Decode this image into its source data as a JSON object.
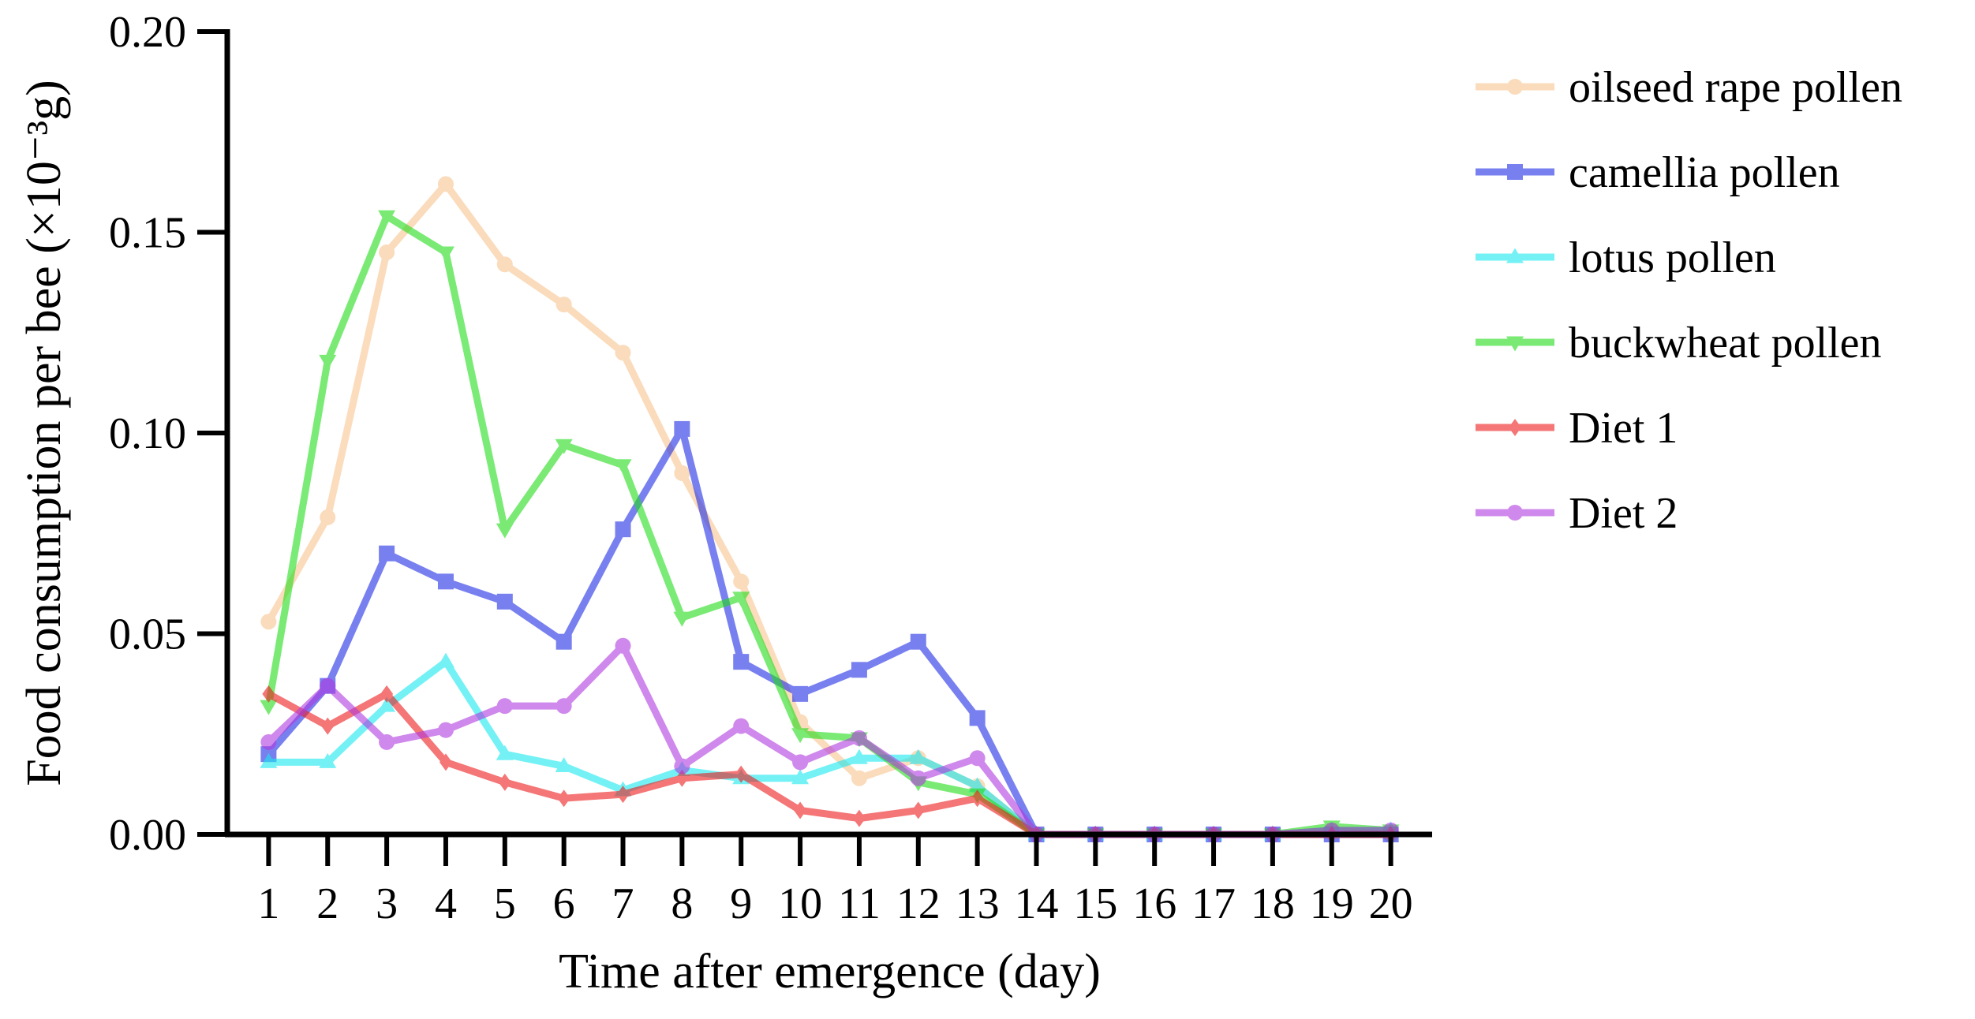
{
  "chart_data": {
    "type": "line",
    "title": "",
    "xlabel": "Time after emergence (day)",
    "ylabel": "Food consumption per bee (×10⁻³g)",
    "x": [
      1,
      2,
      3,
      4,
      5,
      6,
      7,
      8,
      9,
      10,
      11,
      12,
      13,
      14,
      15,
      16,
      17,
      18,
      19,
      20
    ],
    "x_tick_labels": [
      "1",
      "2",
      "3",
      "4",
      "5",
      "6",
      "7",
      "8",
      "9",
      "10",
      "11",
      "12",
      "13",
      "14",
      "15",
      "16",
      "17",
      "18",
      "19",
      "20"
    ],
    "y_ticks": [
      0.0,
      0.05,
      0.1,
      0.15,
      0.2
    ],
    "y_tick_labels": [
      "0.00",
      "0.05",
      "0.10",
      "0.15",
      "0.20"
    ],
    "ylim": [
      0,
      0.2
    ],
    "xlim": [
      0.3,
      20.7
    ],
    "grid": false,
    "legend_position": "right",
    "series": [
      {
        "name": "oilseed rape pollen",
        "color": "#f8c48f",
        "marker": "circle",
        "values": [
          0.053,
          0.079,
          0.145,
          0.162,
          0.142,
          0.132,
          0.12,
          0.09,
          0.063,
          0.028,
          0.014,
          0.019,
          0.012,
          0.0,
          0.0,
          0.0,
          0.0,
          0.0,
          0.001,
          0.0
        ]
      },
      {
        "name": "camellia pollen",
        "color": "#1f2de6",
        "marker": "square",
        "values": [
          0.02,
          0.037,
          0.07,
          0.063,
          0.058,
          0.048,
          0.076,
          0.101,
          0.043,
          0.035,
          0.041,
          0.048,
          0.029,
          0.0,
          0.0,
          0.0,
          0.0,
          0.0,
          0.0,
          0.0
        ]
      },
      {
        "name": "lotus pollen",
        "color": "#17e8f0",
        "marker": "triangle-up",
        "values": [
          0.018,
          0.018,
          0.032,
          0.043,
          0.02,
          0.017,
          0.011,
          0.016,
          0.014,
          0.014,
          0.019,
          0.019,
          0.012,
          0.0,
          0.0,
          0.0,
          0.0,
          0.0,
          0.001,
          0.001
        ]
      },
      {
        "name": "buckwheat pollen",
        "color": "#22dd1a",
        "marker": "triangle-down",
        "values": [
          0.032,
          0.118,
          0.154,
          0.145,
          0.076,
          0.097,
          0.092,
          0.054,
          0.059,
          0.025,
          0.024,
          0.013,
          0.01,
          0.0,
          0.0,
          0.0,
          0.0,
          0.0,
          0.002,
          0.001
        ]
      },
      {
        "name": "Diet 1",
        "color": "#ee1c1c",
        "marker": "diamond",
        "values": [
          0.035,
          0.027,
          0.035,
          0.018,
          0.013,
          0.009,
          0.01,
          0.014,
          0.015,
          0.006,
          0.004,
          0.006,
          0.009,
          0.0,
          0.0,
          0.0,
          0.0,
          0.0,
          0.0,
          0.0
        ]
      },
      {
        "name": "Diet 2",
        "color": "#b03adf",
        "marker": "circle",
        "values": [
          0.023,
          0.037,
          0.023,
          0.026,
          0.032,
          0.032,
          0.047,
          0.017,
          0.027,
          0.018,
          0.024,
          0.014,
          0.019,
          0.0,
          0.0,
          0.0,
          0.0,
          0.0,
          0.001,
          0.001
        ]
      }
    ]
  }
}
